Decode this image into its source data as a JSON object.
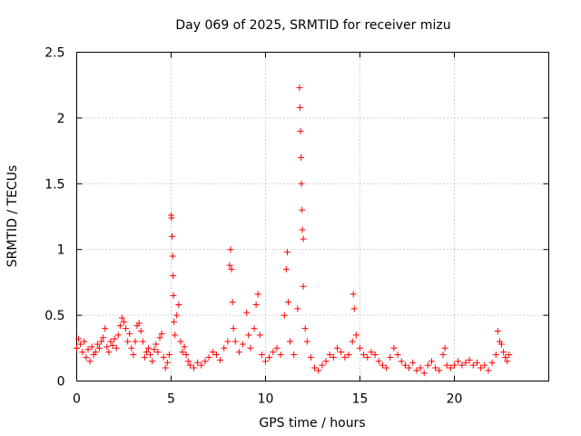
{
  "chart_data": {
    "type": "scatter",
    "title": "Day 069 of 2025, SRMTID for receiver mizu",
    "xlabel": "GPS time / hours",
    "ylabel": "SRMTID / TECUs",
    "xlim": [
      0,
      25
    ],
    "ylim": [
      0,
      2.5
    ],
    "xticks": [
      0,
      5,
      10,
      15,
      20
    ],
    "xtick_labels": [
      "0",
      "5",
      "10",
      "15",
      "20"
    ],
    "yticks": [
      0,
      0.5,
      1,
      1.5,
      2,
      2.5
    ],
    "ytick_labels": [
      "0",
      "0.5",
      "1",
      "1.5",
      "2",
      "2.5"
    ],
    "grid": true,
    "marker": "+",
    "marker_color": "#ff0000",
    "series": [
      {
        "name": "SRMTID",
        "points": [
          [
            0.0,
            0.25
          ],
          [
            0.1,
            0.32
          ],
          [
            0.2,
            0.28
          ],
          [
            0.3,
            0.22
          ],
          [
            0.4,
            0.3
          ],
          [
            0.5,
            0.18
          ],
          [
            0.6,
            0.24
          ],
          [
            0.7,
            0.15
          ],
          [
            0.8,
            0.26
          ],
          [
            0.9,
            0.2
          ],
          [
            1.0,
            0.22
          ],
          [
            1.1,
            0.28
          ],
          [
            1.2,
            0.25
          ],
          [
            1.3,
            0.3
          ],
          [
            1.4,
            0.33
          ],
          [
            1.5,
            0.4
          ],
          [
            1.6,
            0.26
          ],
          [
            1.7,
            0.22
          ],
          [
            1.8,
            0.3
          ],
          [
            1.9,
            0.27
          ],
          [
            2.0,
            0.32
          ],
          [
            2.1,
            0.25
          ],
          [
            2.2,
            0.35
          ],
          [
            2.3,
            0.42
          ],
          [
            2.4,
            0.48
          ],
          [
            2.5,
            0.45
          ],
          [
            2.6,
            0.4
          ],
          [
            2.7,
            0.3
          ],
          [
            2.8,
            0.36
          ],
          [
            2.9,
            0.25
          ],
          [
            3.0,
            0.2
          ],
          [
            3.1,
            0.3
          ],
          [
            3.2,
            0.42
          ],
          [
            3.3,
            0.44
          ],
          [
            3.4,
            0.38
          ],
          [
            3.5,
            0.3
          ],
          [
            3.6,
            0.18
          ],
          [
            3.7,
            0.22
          ],
          [
            3.8,
            0.25
          ],
          [
            3.9,
            0.2
          ],
          [
            4.0,
            0.15
          ],
          [
            4.1,
            0.24
          ],
          [
            4.2,
            0.28
          ],
          [
            4.3,
            0.22
          ],
          [
            4.4,
            0.33
          ],
          [
            4.5,
            0.36
          ],
          [
            4.6,
            0.18
          ],
          [
            4.7,
            0.1
          ],
          [
            4.8,
            0.14
          ],
          [
            4.9,
            0.2
          ],
          [
            5.0,
            1.26
          ],
          [
            5.02,
            1.24
          ],
          [
            5.05,
            1.1
          ],
          [
            5.08,
            0.95
          ],
          [
            5.1,
            0.8
          ],
          [
            5.12,
            0.65
          ],
          [
            5.15,
            0.45
          ],
          [
            5.2,
            0.35
          ],
          [
            5.3,
            0.5
          ],
          [
            5.4,
            0.58
          ],
          [
            5.5,
            0.3
          ],
          [
            5.6,
            0.22
          ],
          [
            5.7,
            0.26
          ],
          [
            5.8,
            0.2
          ],
          [
            5.9,
            0.15
          ],
          [
            6.0,
            0.12
          ],
          [
            6.2,
            0.1
          ],
          [
            6.4,
            0.14
          ],
          [
            6.6,
            0.12
          ],
          [
            6.8,
            0.15
          ],
          [
            7.0,
            0.18
          ],
          [
            7.2,
            0.22
          ],
          [
            7.4,
            0.2
          ],
          [
            7.6,
            0.16
          ],
          [
            7.8,
            0.25
          ],
          [
            8.0,
            0.3
          ],
          [
            8.1,
            0.88
          ],
          [
            8.15,
            1.0
          ],
          [
            8.2,
            0.85
          ],
          [
            8.25,
            0.6
          ],
          [
            8.3,
            0.4
          ],
          [
            8.4,
            0.3
          ],
          [
            8.6,
            0.22
          ],
          [
            8.8,
            0.28
          ],
          [
            9.0,
            0.52
          ],
          [
            9.1,
            0.35
          ],
          [
            9.2,
            0.25
          ],
          [
            9.4,
            0.4
          ],
          [
            9.5,
            0.58
          ],
          [
            9.6,
            0.66
          ],
          [
            9.7,
            0.35
          ],
          [
            9.8,
            0.2
          ],
          [
            10.0,
            0.15
          ],
          [
            10.2,
            0.18
          ],
          [
            10.4,
            0.22
          ],
          [
            10.6,
            0.25
          ],
          [
            10.8,
            0.2
          ],
          [
            11.0,
            0.5
          ],
          [
            11.1,
            0.85
          ],
          [
            11.15,
            0.98
          ],
          [
            11.2,
            0.6
          ],
          [
            11.3,
            0.3
          ],
          [
            11.5,
            0.2
          ],
          [
            11.7,
            0.55
          ],
          [
            11.8,
            2.23
          ],
          [
            11.82,
            2.08
          ],
          [
            11.85,
            1.9
          ],
          [
            11.88,
            1.7
          ],
          [
            11.9,
            1.5
          ],
          [
            11.93,
            1.3
          ],
          [
            11.95,
            1.15
          ],
          [
            12.0,
            1.08
          ],
          [
            12.0,
            0.72
          ],
          [
            12.1,
            0.4
          ],
          [
            12.2,
            0.3
          ],
          [
            12.4,
            0.18
          ],
          [
            12.6,
            0.1
          ],
          [
            12.8,
            0.08
          ],
          [
            13.0,
            0.12
          ],
          [
            13.2,
            0.15
          ],
          [
            13.4,
            0.2
          ],
          [
            13.6,
            0.18
          ],
          [
            13.8,
            0.25
          ],
          [
            14.0,
            0.22
          ],
          [
            14.2,
            0.18
          ],
          [
            14.4,
            0.2
          ],
          [
            14.6,
            0.3
          ],
          [
            14.65,
            0.66
          ],
          [
            14.7,
            0.55
          ],
          [
            14.8,
            0.35
          ],
          [
            15.0,
            0.25
          ],
          [
            15.2,
            0.2
          ],
          [
            15.4,
            0.18
          ],
          [
            15.6,
            0.22
          ],
          [
            15.8,
            0.2
          ],
          [
            16.0,
            0.15
          ],
          [
            16.2,
            0.12
          ],
          [
            16.4,
            0.1
          ],
          [
            16.6,
            0.18
          ],
          [
            16.8,
            0.25
          ],
          [
            17.0,
            0.2
          ],
          [
            17.2,
            0.15
          ],
          [
            17.4,
            0.12
          ],
          [
            17.6,
            0.1
          ],
          [
            17.8,
            0.14
          ],
          [
            18.0,
            0.08
          ],
          [
            18.2,
            0.1
          ],
          [
            18.4,
            0.06
          ],
          [
            18.6,
            0.12
          ],
          [
            18.8,
            0.15
          ],
          [
            19.0,
            0.1
          ],
          [
            19.2,
            0.08
          ],
          [
            19.4,
            0.2
          ],
          [
            19.5,
            0.25
          ],
          [
            19.6,
            0.12
          ],
          [
            19.8,
            0.1
          ],
          [
            20.0,
            0.12
          ],
          [
            20.2,
            0.15
          ],
          [
            20.4,
            0.12
          ],
          [
            20.6,
            0.14
          ],
          [
            20.8,
            0.16
          ],
          [
            21.0,
            0.12
          ],
          [
            21.2,
            0.14
          ],
          [
            21.4,
            0.1
          ],
          [
            21.6,
            0.12
          ],
          [
            21.8,
            0.08
          ],
          [
            22.0,
            0.14
          ],
          [
            22.2,
            0.2
          ],
          [
            22.3,
            0.38
          ],
          [
            22.4,
            0.3
          ],
          [
            22.5,
            0.28
          ],
          [
            22.6,
            0.22
          ],
          [
            22.7,
            0.18
          ],
          [
            22.8,
            0.15
          ],
          [
            22.9,
            0.2
          ]
        ]
      }
    ]
  }
}
